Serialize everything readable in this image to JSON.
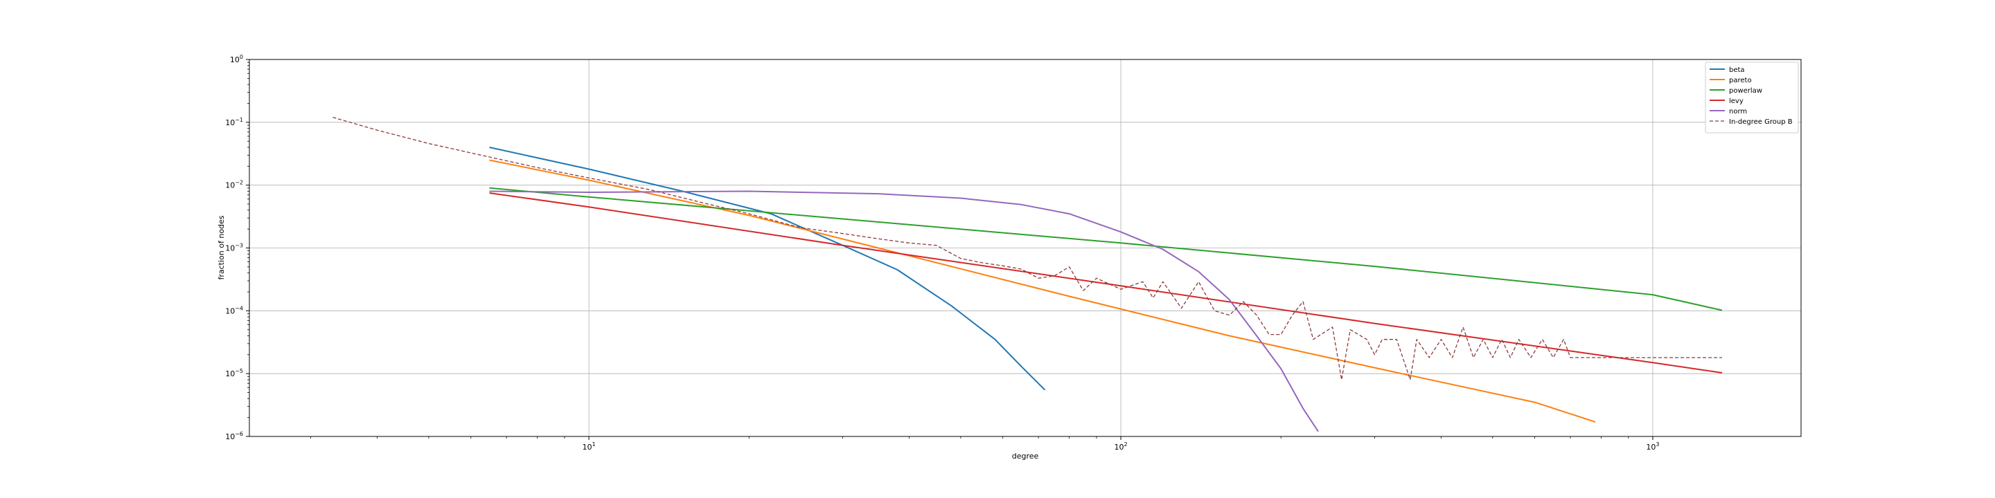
{
  "chart_data": {
    "type": "line",
    "xscale": "log",
    "yscale": "log",
    "xlim": [
      2.3,
      1900
    ],
    "ylim": [
      1e-06,
      1
    ],
    "xlabel": "degree",
    "ylabel": "fraction of nodes",
    "grid": true,
    "legend_position": "top-right",
    "x_ticks": [
      {
        "value": 10,
        "base": "10",
        "exp": "1"
      },
      {
        "value": 100,
        "base": "10",
        "exp": "2"
      },
      {
        "value": 1000,
        "base": "10",
        "exp": "3"
      }
    ],
    "y_ticks": [
      {
        "value": 1,
        "base": "10",
        "exp": "0"
      },
      {
        "value": 0.1,
        "base": "10",
        "exp": "−1"
      },
      {
        "value": 0.01,
        "base": "10",
        "exp": "−2"
      },
      {
        "value": 0.001,
        "base": "10",
        "exp": "−3"
      },
      {
        "value": 0.0001,
        "base": "10",
        "exp": "−4"
      },
      {
        "value": 1e-05,
        "base": "10",
        "exp": "−5"
      },
      {
        "value": 1e-06,
        "base": "10",
        "exp": "−6"
      }
    ],
    "series": [
      {
        "name": "beta",
        "color": "#1f77b4",
        "style": "solid",
        "points": [
          [
            6.5,
            0.04
          ],
          [
            10,
            0.018
          ],
          [
            15,
            0.008
          ],
          [
            22,
            0.0035
          ],
          [
            30,
            0.0011
          ],
          [
            38,
            0.00045
          ],
          [
            48,
            0.00012
          ],
          [
            58,
            3.5e-05
          ],
          [
            65,
            1.3e-05
          ],
          [
            72,
            5.5e-06
          ]
        ]
      },
      {
        "name": "pareto",
        "color": "#ff7f0e",
        "style": "solid",
        "points": [
          [
            6.5,
            0.025
          ],
          [
            10,
            0.012
          ],
          [
            20,
            0.0033
          ],
          [
            40,
            0.00075
          ],
          [
            80,
            0.00017
          ],
          [
            160,
            4e-05
          ],
          [
            320,
            1.1e-05
          ],
          [
            600,
            3.5e-06
          ],
          [
            780,
            1.7e-06
          ]
        ]
      },
      {
        "name": "powerlaw",
        "color": "#2ca02c",
        "style": "solid",
        "points": [
          [
            6.5,
            0.009
          ],
          [
            10,
            0.0065
          ],
          [
            30,
            0.0029
          ],
          [
            100,
            0.0012
          ],
          [
            300,
            0.00051
          ],
          [
            1000,
            0.00018
          ],
          [
            1350,
            0.000102
          ]
        ]
      },
      {
        "name": "levy",
        "color": "#d62728",
        "style": "solid",
        "points": [
          [
            6.5,
            0.0075
          ],
          [
            10,
            0.0045
          ],
          [
            30,
            0.0011
          ],
          [
            100,
            0.00025
          ],
          [
            300,
            6.3e-05
          ],
          [
            1000,
            1.5e-05
          ],
          [
            1350,
            1.03e-05
          ]
        ]
      },
      {
        "name": "norm",
        "color": "#9467bd",
        "style": "solid",
        "points": [
          [
            6.5,
            0.008
          ],
          [
            10,
            0.0077
          ],
          [
            20,
            0.008
          ],
          [
            35,
            0.0073
          ],
          [
            50,
            0.0062
          ],
          [
            65,
            0.0049
          ],
          [
            80,
            0.0035
          ],
          [
            100,
            0.0018
          ],
          [
            120,
            0.00095
          ],
          [
            140,
            0.00042
          ],
          [
            160,
            0.00015
          ],
          [
            180,
            4e-05
          ],
          [
            200,
            1.2e-05
          ],
          [
            220,
            2.8e-06
          ],
          [
            235,
            1.2e-06
          ]
        ]
      },
      {
        "name": "In-degree Group B",
        "color": "#8c3a3a",
        "style": "dashed",
        "points": [
          [
            3.3,
            0.12
          ],
          [
            4,
            0.075
          ],
          [
            5,
            0.046
          ],
          [
            6.5,
            0.028
          ],
          [
            8,
            0.019
          ],
          [
            10,
            0.013
          ],
          [
            13,
            0.0085
          ],
          [
            16,
            0.0055
          ],
          [
            20,
            0.0035
          ],
          [
            25,
            0.0021
          ],
          [
            30,
            0.0017
          ],
          [
            35,
            0.0014
          ],
          [
            40,
            0.0012
          ],
          [
            45,
            0.0011
          ],
          [
            50,
            0.00068
          ],
          [
            55,
            0.00058
          ],
          [
            60,
            0.00052
          ],
          [
            65,
            0.00046
          ],
          [
            70,
            0.00033
          ],
          [
            75,
            0.00036
          ],
          [
            80,
            0.0005
          ],
          [
            85,
            0.00021
          ],
          [
            90,
            0.00033
          ],
          [
            100,
            0.00022
          ],
          [
            110,
            0.00029
          ],
          [
            115,
            0.00016
          ],
          [
            120,
            0.00029
          ],
          [
            130,
            0.00011
          ],
          [
            140,
            0.00029
          ],
          [
            150,
            0.0001
          ],
          [
            160,
            8.5e-05
          ],
          [
            170,
            0.00014
          ],
          [
            180,
            8.5e-05
          ],
          [
            190,
            4.2e-05
          ],
          [
            200,
            4.2e-05
          ],
          [
            210,
            8.5e-05
          ],
          [
            220,
            0.00014
          ],
          [
            230,
            3.5e-05
          ],
          [
            250,
            5.5e-05
          ],
          [
            260,
            8e-06
          ],
          [
            270,
            5e-05
          ],
          [
            290,
            3.5e-05
          ],
          [
            300,
            2e-05
          ],
          [
            310,
            3.5e-05
          ],
          [
            330,
            3.5e-05
          ],
          [
            350,
            8e-06
          ],
          [
            360,
            3.5e-05
          ],
          [
            380,
            1.8e-05
          ],
          [
            400,
            3.5e-05
          ],
          [
            420,
            1.8e-05
          ],
          [
            440,
            5.5e-05
          ],
          [
            460,
            1.8e-05
          ],
          [
            480,
            3.5e-05
          ],
          [
            500,
            1.8e-05
          ],
          [
            520,
            3.5e-05
          ],
          [
            540,
            1.8e-05
          ],
          [
            560,
            3.5e-05
          ],
          [
            590,
            1.8e-05
          ],
          [
            620,
            3.5e-05
          ],
          [
            650,
            1.8e-05
          ],
          [
            680,
            3.5e-05
          ],
          [
            700,
            1.8e-05
          ],
          [
            720,
            1.8e-05
          ],
          [
            760,
            1.8e-05
          ],
          [
            850,
            1.8e-05
          ],
          [
            1000,
            1.8e-05
          ],
          [
            1050,
            1.8e-05
          ],
          [
            1200,
            1.8e-05
          ],
          [
            1350,
            1.8e-05
          ]
        ]
      }
    ]
  }
}
